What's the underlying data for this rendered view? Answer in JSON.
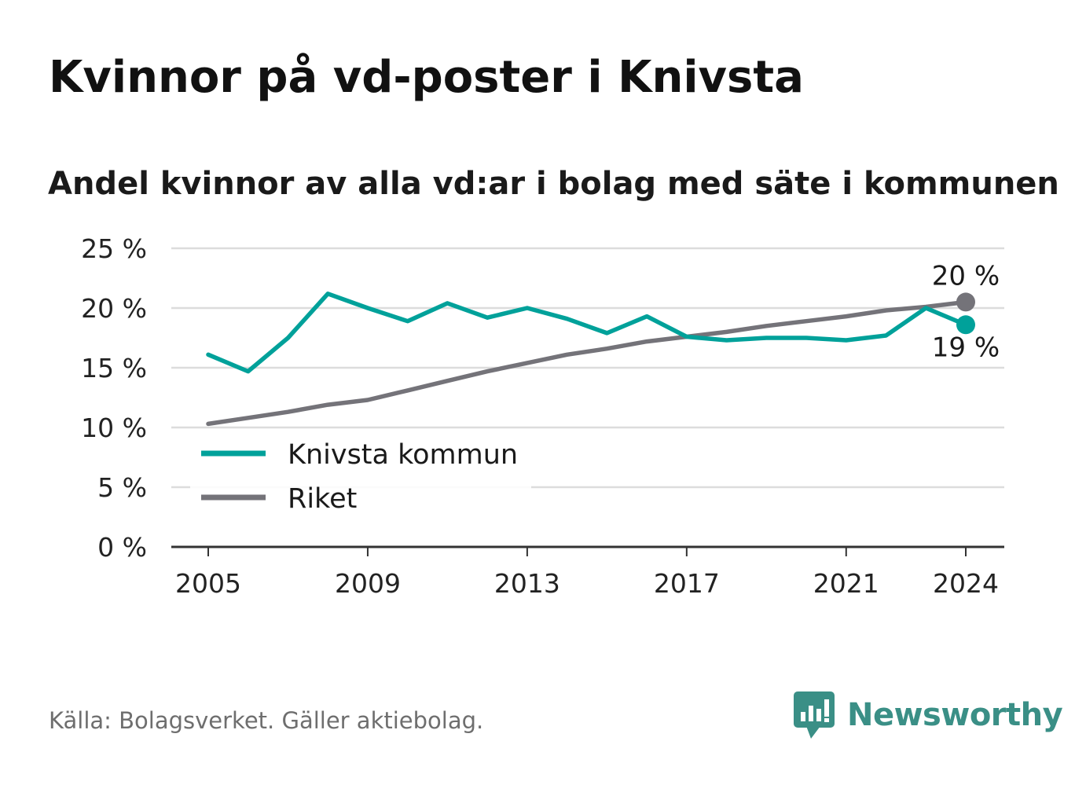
{
  "title": "Kvinnor på vd-poster i Knivsta",
  "subtitle": "Andel kvinnor av alla vd:ar i bolag med säte i kommunen",
  "source": "Källa: Bolagsverket. Gäller aktiebolag.",
  "brand": "Newsworthy",
  "colors": {
    "knivsta": "#00a19a",
    "riket": "#747379",
    "brand": "#3a8f86"
  },
  "chart_data": {
    "type": "line",
    "ylim": [
      0,
      25
    ],
    "yticks": [
      0,
      5,
      10,
      15,
      20,
      25
    ],
    "ytick_labels": [
      "0 %",
      "5 %",
      "10 %",
      "15 %",
      "20 %",
      "25 %"
    ],
    "xticks": [
      2005,
      2009,
      2013,
      2017,
      2021,
      2024
    ],
    "xtick_labels": [
      "2005",
      "2009",
      "2013",
      "2017",
      "2021",
      "2024"
    ],
    "grid": true,
    "legend_position": "bottom-left",
    "x": [
      2005,
      2006,
      2007,
      2008,
      2009,
      2010,
      2011,
      2012,
      2013,
      2014,
      2015,
      2016,
      2017,
      2018,
      2019,
      2020,
      2021,
      2022,
      2023,
      2024
    ],
    "series": [
      {
        "name": "Knivsta kommun",
        "color": "#00a19a",
        "values": [
          16.1,
          14.7,
          17.5,
          21.2,
          20.0,
          18.9,
          20.4,
          19.2,
          20.0,
          19.1,
          17.9,
          19.3,
          17.6,
          17.3,
          17.5,
          17.5,
          17.3,
          17.7,
          20.0,
          18.6
        ],
        "end_label": "19 %"
      },
      {
        "name": "Riket",
        "color": "#747379",
        "values": [
          10.3,
          10.8,
          11.3,
          11.9,
          12.3,
          13.1,
          13.9,
          14.7,
          15.4,
          16.1,
          16.6,
          17.2,
          17.6,
          18.0,
          18.5,
          18.9,
          19.3,
          19.8,
          20.1,
          20.5
        ],
        "end_label": "20 %"
      }
    ]
  }
}
